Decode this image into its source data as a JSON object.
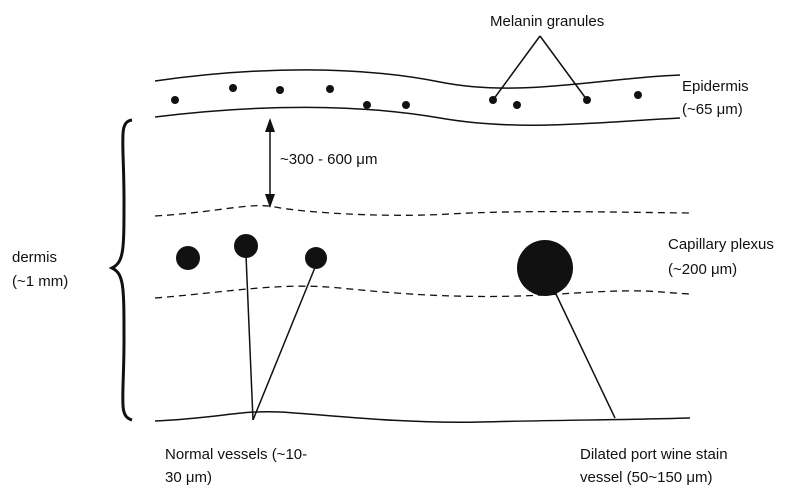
{
  "labels": {
    "melanin": {
      "lines": [
        "Melanin granules"
      ]
    },
    "epidermis": {
      "lines": [
        "Epidermis",
        "(~65 μm)"
      ]
    },
    "depth": {
      "lines": [
        "~300 - 600 μm"
      ]
    },
    "dermis": {
      "lines": [
        "dermis",
        "(~1 mm)"
      ]
    },
    "capillary": {
      "lines": [
        "Capillary plexus",
        "(~200 μm)"
      ]
    },
    "normal": {
      "lines": [
        "Normal vessels  (~10-",
        "30 μm)"
      ]
    },
    "dilated": {
      "lines": [
        "Dilated port wine stain",
        "vessel (50~150 μm)"
      ]
    }
  }
}
